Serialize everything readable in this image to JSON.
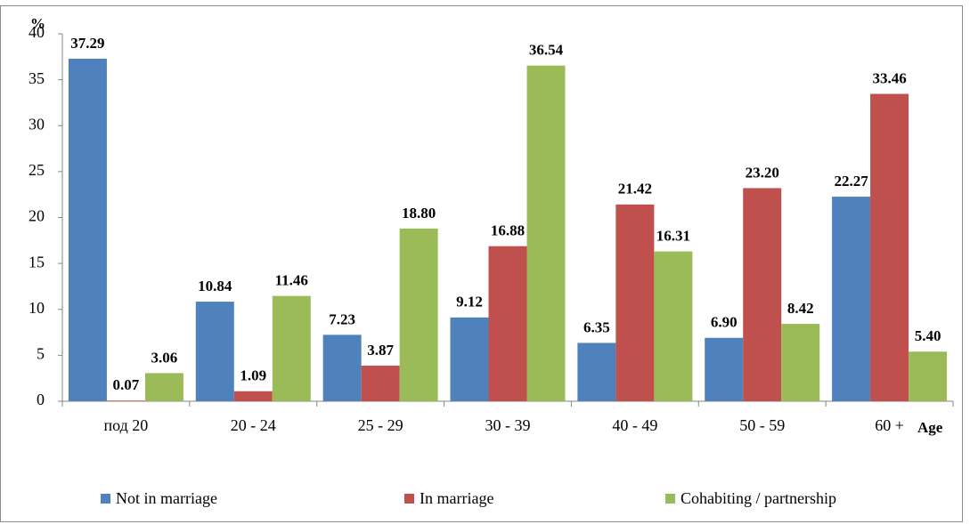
{
  "chart_data": {
    "type": "bar",
    "y_label": "%",
    "x_label": "Age",
    "categories": [
      "под 20",
      "20 - 24",
      "25 - 29",
      "30 - 39",
      "40 - 49",
      "50 - 59",
      "60 +"
    ],
    "series": [
      {
        "name": "Not in marriage",
        "color": "#4f81bd",
        "values": [
          37.29,
          10.84,
          7.23,
          9.12,
          6.35,
          6.9,
          22.27
        ],
        "value_labels": [
          "37.29",
          "10.84",
          "7.23",
          "9.12",
          "6.35",
          "6.90",
          "22.27"
        ]
      },
      {
        "name": "In marriage",
        "color": "#c0504d",
        "values": [
          0.07,
          1.09,
          3.87,
          16.88,
          21.42,
          23.2,
          33.46
        ],
        "value_labels": [
          "0.07",
          "1.09",
          "3.87",
          "16.88",
          "21.42",
          "23.20",
          "33.46"
        ]
      },
      {
        "name": "Cohabiting / partnership",
        "color": "#9bbb59",
        "values": [
          3.06,
          11.46,
          18.8,
          36.54,
          16.31,
          8.42,
          5.4
        ],
        "value_labels": [
          "3.06",
          "11.46",
          "18.80",
          "36.54",
          "16.31",
          "8.42",
          "5.40"
        ]
      }
    ],
    "ylim": [
      0,
      40
    ],
    "yticks": [
      0,
      5,
      10,
      15,
      20,
      25,
      30,
      35,
      40
    ],
    "grid": false,
    "legend": "bottom"
  }
}
